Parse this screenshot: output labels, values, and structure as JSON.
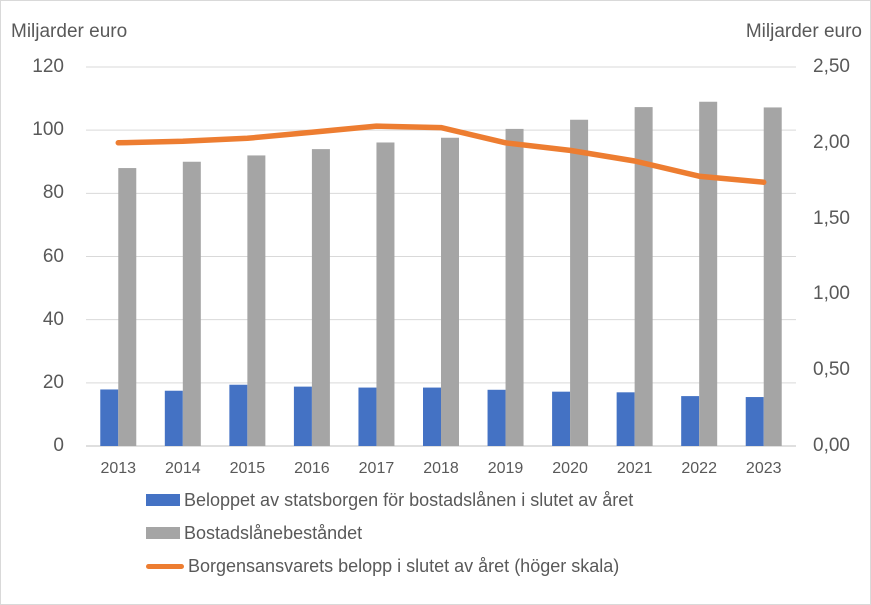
{
  "chart_data": {
    "type": "bar",
    "subtype": "combo-bar-line-dual-axis",
    "title": "",
    "categories": [
      "2013",
      "2014",
      "2015",
      "2016",
      "2017",
      "2018",
      "2019",
      "2020",
      "2021",
      "2022",
      "2023"
    ],
    "series": [
      {
        "name": "Beloppet av statsborgen för bostadslånen i slutet av året",
        "type": "bar",
        "axis": "left",
        "color": "#4472C4",
        "values": [
          17.9,
          17.5,
          19.4,
          18.8,
          18.5,
          18.5,
          17.8,
          17.2,
          17.0,
          15.8,
          15.5
        ]
      },
      {
        "name": "Bostadslånebeståndet",
        "type": "bar",
        "axis": "left",
        "color": "#A5A5A5",
        "values": [
          88.0,
          90.0,
          92.0,
          94.0,
          96.1,
          97.6,
          100.4,
          103.3,
          107.3,
          109.0,
          107.2
        ]
      },
      {
        "name": "Borgensansvarets belopp i slutet av året (höger skala)",
        "type": "line",
        "axis": "right",
        "color": "#ED7D31",
        "values": [
          2.0,
          2.01,
          2.03,
          2.07,
          2.11,
          2.1,
          2.0,
          1.95,
          1.88,
          1.78,
          1.74
        ]
      }
    ],
    "left_axis": {
      "title": "Miljarder euro",
      "min": 0,
      "max": 120,
      "step": 20,
      "ticks": [
        {
          "label": "0",
          "value": 0
        },
        {
          "label": "20",
          "value": 20
        },
        {
          "label": "40",
          "value": 40
        },
        {
          "label": "60",
          "value": 60
        },
        {
          "label": "80",
          "value": 80
        },
        {
          "label": "100",
          "value": 100
        },
        {
          "label": "120",
          "value": 120
        }
      ]
    },
    "right_axis": {
      "title": "Miljarder euro",
      "min": 0,
      "max": 2.5,
      "step": 0.5,
      "ticks": [
        {
          "label": "0,00",
          "value": 0
        },
        {
          "label": "0,50",
          "value": 0.5
        },
        {
          "label": "1,00",
          "value": 1.0
        },
        {
          "label": "1,50",
          "value": 1.5
        },
        {
          "label": "2,00",
          "value": 2.0
        },
        {
          "label": "2,50",
          "value": 2.5
        }
      ]
    },
    "grid": "horizontal",
    "gridline_color": "#D9D9D9",
    "axis_line_color": "#BFBFBF",
    "text_color": "#595959",
    "legend_position": "bottom-left"
  }
}
